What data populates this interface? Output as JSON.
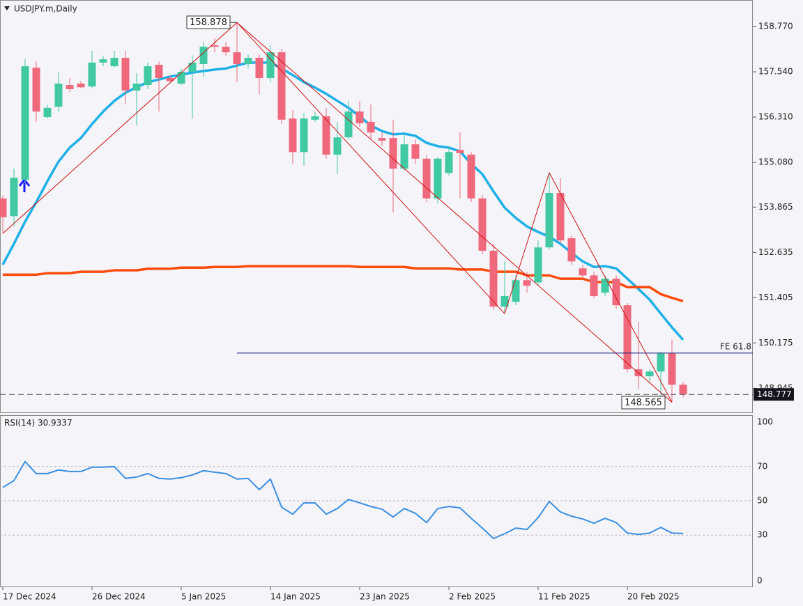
{
  "chart_data": [
    {
      "type": "candlestick",
      "title": "USDJPY.m,Daily",
      "categories": [
        "17 Dec 2024",
        null,
        null,
        null,
        null,
        null,
        null,
        null,
        "26 Dec 2024",
        null,
        null,
        null,
        null,
        null,
        null,
        null,
        "5 Jan 2025",
        null,
        null,
        null,
        null,
        null,
        null,
        null,
        "14 Jan 2025",
        null,
        null,
        null,
        null,
        null,
        null,
        null,
        "23 Jan 2025",
        null,
        null,
        null,
        null,
        null,
        null,
        null,
        "2 Feb 2025",
        null,
        null,
        null,
        null,
        null,
        null,
        null,
        "11 Feb 2025",
        null,
        null,
        null,
        null,
        null,
        null,
        null,
        "20 Feb 2025",
        null,
        null,
        null,
        null,
        null
      ],
      "open": [
        154.1,
        153.62,
        154.61,
        157.65,
        156.31,
        156.59,
        157.18,
        157.22,
        157.14,
        157.79,
        157.69,
        157.92,
        157.03,
        157.18,
        157.73,
        157.37,
        157.22,
        157.54,
        157.75,
        158.26,
        158.22,
        158.07,
        157.75,
        157.92,
        157.37,
        158.07,
        156.27,
        155.36,
        156.24,
        156.33,
        155.29,
        155.76,
        156.46,
        156.18,
        155.74,
        155.74,
        154.91,
        155.57,
        155.18,
        154.1,
        154.79,
        155.42,
        155.29,
        154.1,
        152.68,
        151.16,
        151.29,
        151.88,
        151.82,
        152.77,
        154.25,
        153.02,
        152.2,
        152.01,
        151.54,
        151.92,
        151.2,
        149.46,
        149.27,
        149.4,
        149.89,
        149.04
      ],
      "high": [
        154.19,
        154.91,
        157.88,
        157.82,
        156.65,
        157.54,
        157.37,
        157.29,
        158.11,
        157.98,
        158.11,
        158.11,
        157.5,
        157.79,
        157.82,
        157.44,
        157.63,
        157.98,
        158.35,
        158.45,
        158.35,
        158.878,
        158.01,
        158.01,
        158.26,
        158.16,
        156.5,
        156.42,
        156.46,
        156.56,
        156.18,
        156.75,
        156.75,
        156.65,
        155.89,
        156.24,
        155.86,
        155.7,
        155.29,
        155.23,
        155.52,
        155.89,
        155.36,
        154.19,
        152.87,
        152.39,
        152.01,
        152.11,
        152.96,
        154.8,
        154.66,
        153.09,
        152.3,
        152.11,
        152.01,
        152.01,
        151.26,
        150.75,
        149.46,
        149.93,
        150.27,
        149.12
      ],
      "low": [
        153.15,
        153.34,
        154.53,
        156.18,
        156.27,
        156.46,
        156.99,
        157.1,
        157.1,
        157.69,
        157.67,
        156.65,
        156.08,
        157.07,
        156.46,
        157.22,
        157.18,
        156.27,
        157.41,
        158.07,
        157.98,
        157.26,
        157.63,
        156.93,
        157.26,
        156.12,
        155.04,
        154.99,
        156.18,
        155.18,
        154.76,
        155.7,
        156.05,
        155.7,
        155.52,
        153.72,
        154.85,
        155.04,
        154.0,
        153.96,
        154.72,
        154.1,
        154.0,
        152.58,
        151.07,
        150.97,
        151.2,
        151.54,
        151.73,
        152.72,
        152.87,
        152.3,
        151.92,
        151.39,
        151.45,
        151.11,
        149.37,
        148.93,
        149.12,
        148.7,
        148.565,
        148.7
      ],
      "close": [
        153.59,
        154.66,
        157.69,
        156.46,
        156.56,
        157.22,
        157.07,
        157.12,
        157.79,
        157.88,
        157.92,
        157.03,
        157.22,
        157.69,
        157.37,
        157.29,
        157.54,
        157.79,
        158.22,
        158.22,
        158.07,
        157.75,
        157.92,
        157.37,
        158.07,
        156.24,
        155.36,
        156.27,
        156.33,
        155.29,
        155.76,
        156.46,
        156.14,
        155.89,
        155.67,
        154.91,
        155.57,
        155.18,
        154.1,
        155.18,
        155.36,
        155.33,
        154.1,
        152.68,
        151.16,
        151.45,
        151.88,
        151.73,
        152.77,
        154.25,
        152.96,
        152.39,
        152.01,
        151.45,
        151.92,
        151.2,
        149.46,
        149.27,
        149.4,
        149.89,
        149.04,
        148.777
      ],
      "up_color": "#40c9a2",
      "down_color": "#f0687c",
      "overlays": [
        {
          "color": "#1fb0e8",
          "values": [
            152.3,
            152.87,
            153.47,
            154.0,
            154.57,
            155.1,
            155.48,
            155.74,
            156.12,
            156.46,
            156.75,
            156.97,
            157.12,
            157.26,
            157.33,
            157.41,
            157.46,
            157.52,
            157.56,
            157.6,
            157.63,
            157.71,
            157.79,
            157.79,
            157.79,
            157.63,
            157.45,
            157.26,
            157.11,
            156.94,
            156.75,
            156.56,
            156.33,
            156.08,
            155.93,
            155.84,
            155.86,
            155.8,
            155.61,
            155.52,
            155.48,
            155.38,
            155.04,
            154.76,
            154.29,
            153.85,
            153.57,
            153.34,
            153.19,
            153.06,
            152.87,
            152.62,
            152.39,
            152.24,
            152.26,
            152.2,
            151.92,
            151.64,
            151.35,
            150.97,
            150.6,
            150.26
          ]
        },
        {
          "color": "#ff4a0a",
          "values": [
            152.03,
            152.03,
            152.03,
            152.03,
            152.07,
            152.07,
            152.07,
            152.11,
            152.11,
            152.11,
            152.15,
            152.15,
            152.15,
            152.19,
            152.19,
            152.19,
            152.22,
            152.22,
            152.22,
            152.24,
            152.24,
            152.24,
            152.26,
            152.26,
            152.26,
            152.26,
            152.26,
            152.26,
            152.26,
            152.26,
            152.26,
            152.26,
            152.24,
            152.24,
            152.24,
            152.24,
            152.24,
            152.2,
            152.2,
            152.2,
            152.2,
            152.17,
            152.17,
            152.17,
            152.11,
            152.11,
            152.11,
            152.01,
            152.01,
            152.01,
            151.92,
            151.92,
            151.92,
            151.83,
            151.83,
            151.83,
            151.69,
            151.69,
            151.69,
            151.5,
            151.4,
            151.31
          ]
        }
      ],
      "fe_level": {
        "text": "FE 61.8",
        "price": 149.9,
        "color": "#1a1a80"
      },
      "zigzag_color": "#d01010",
      "ylim": [
        148.29,
        159.49
      ],
      "yticks": [
        {
          "value": 158.77,
          "label": "158.770"
        },
        {
          "value": 157.54,
          "label": "157.540"
        },
        {
          "value": 156.31,
          "label": "156.310"
        },
        {
          "value": 155.08,
          "label": "155.080"
        },
        153.865,
        152.635,
        151.405,
        150.175,
        148.945
      ]
    },
    {
      "type": "line",
      "title": "RSI(14)",
      "series": [
        {
          "color": "#3b8fe0",
          "values": [
            57.8,
            61.8,
            72.9,
            65.9,
            65.9,
            68.0,
            67.1,
            67.1,
            69.6,
            69.6,
            70.0,
            63.1,
            63.9,
            65.9,
            63.1,
            62.7,
            63.5,
            65.1,
            67.6,
            66.7,
            65.9,
            62.7,
            63.1,
            56.5,
            62.7,
            46.3,
            42.2,
            48.8,
            48.8,
            42.2,
            45.5,
            50.8,
            48.8,
            46.7,
            45.1,
            40.6,
            45.5,
            42.7,
            37.3,
            45.5,
            46.7,
            45.9,
            39.8,
            34.1,
            28.0,
            30.8,
            34.1,
            33.3,
            40.2,
            49.6,
            43.5,
            41.0,
            39.4,
            36.9,
            39.8,
            37.3,
            31.2,
            30.4,
            31.2,
            34.5,
            31.2,
            30.9337
          ]
        }
      ],
      "ylim": [
        0,
        100
      ],
      "yticks": [
        0,
        30,
        50,
        70,
        100
      ],
      "grid": true
    }
  ]
}
